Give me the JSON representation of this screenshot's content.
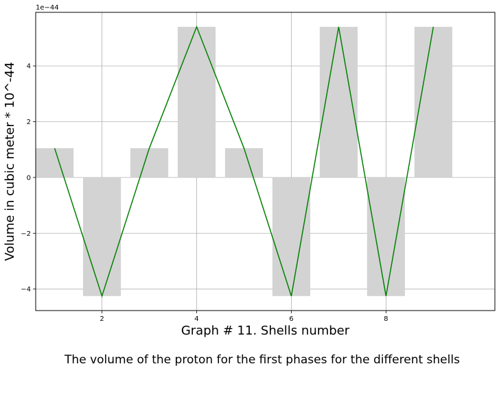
{
  "chart_data": {
    "type": "bar",
    "x": [
      1,
      2,
      3,
      4,
      5,
      6,
      7,
      8,
      9
    ],
    "values": [
      1.05,
      -4.25,
      1.05,
      5.4,
      1.05,
      -4.25,
      5.4,
      -4.25,
      5.4
    ],
    "line_values": [
      1.05,
      -4.25,
      1.05,
      5.4,
      1.05,
      -4.25,
      5.4,
      -4.25,
      5.4
    ],
    "xlabel": "Graph # 11. Shells number",
    "ylabel": "Volume in cubic meter * 10^-44",
    "caption": "The volume of the proton for the first phases for the different shells",
    "offset_text": "1e−44",
    "xticks": [
      2,
      4,
      6,
      8
    ],
    "xtick_labels": [
      "2",
      "4",
      "6",
      "8"
    ],
    "yticks": [
      -4,
      -2,
      0,
      2,
      4
    ],
    "ytick_labels": [
      "−4",
      "−2",
      "0",
      "2",
      "4"
    ],
    "xlim": [
      0.6,
      10.3
    ],
    "ylim": [
      -4.77,
      5.92
    ],
    "grid": true,
    "bar_color": "#d3d3d3",
    "line_color": "#008000"
  }
}
